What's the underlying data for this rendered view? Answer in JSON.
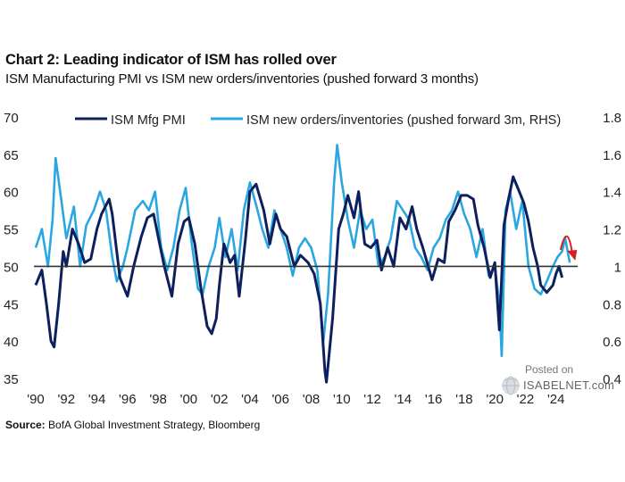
{
  "title": "Chart 2: Leading indicator of ISM has rolled over",
  "subtitle": "ISM Manufacturing PMI vs ISM new orders/inventories (pushed forward 3 months)",
  "source_label": "Source:",
  "source_text": " BofA Global Investment Strategy, Bloomberg",
  "watermark": {
    "posted": "Posted on",
    "site": "ISABELNET.com"
  },
  "colors": {
    "pmi": "#0d1f5c",
    "ratio": "#2aa7e0",
    "arrow": "#d62020",
    "refline": "#333333"
  },
  "chart_data": {
    "type": "line",
    "legend_position": "top",
    "grid": false,
    "x_range": [
      1990,
      2025.3
    ],
    "x_ticks": [
      "'90",
      "'92",
      "'94",
      "'96",
      "'98",
      "'00",
      "'02",
      "'04",
      "'06",
      "'08",
      "'10",
      "'12",
      "'14",
      "'16",
      "'18",
      "'20",
      "'22",
      "'24"
    ],
    "x_tick_values": [
      1990,
      1992,
      1994,
      1996,
      1998,
      2000,
      2002,
      2004,
      2006,
      2008,
      2010,
      2012,
      2014,
      2016,
      2018,
      2020,
      2022,
      2024
    ],
    "y_left": {
      "range": [
        35,
        70
      ],
      "ticks": [
        "35",
        "40",
        "45",
        "50",
        "55",
        "60",
        "65",
        "70"
      ],
      "tick_values": [
        35,
        40,
        45,
        50,
        55,
        60,
        65,
        70
      ]
    },
    "y_right": {
      "range": [
        0.4,
        1.8
      ],
      "ticks": [
        "0.4",
        "0.6",
        "0.8",
        "1",
        "1.2",
        "1.4",
        "1.6",
        "1.8"
      ],
      "tick_values": [
        0.4,
        0.6,
        0.8,
        1.0,
        1.2,
        1.4,
        1.6,
        1.8
      ]
    },
    "reference_line": {
      "axis": "left",
      "value": 50
    },
    "annotation": {
      "type": "curved-arrow",
      "x_range": [
        2024.3,
        2025.2
      ],
      "y_left_peak": 54.5
    },
    "series": [
      {
        "name": "ISM Mfg PMI",
        "axis": "left",
        "points": [
          [
            1990.0,
            47.5
          ],
          [
            1990.4,
            49.5
          ],
          [
            1990.7,
            45.0
          ],
          [
            1991.0,
            40.0
          ],
          [
            1991.2,
            39.2
          ],
          [
            1991.5,
            45.0
          ],
          [
            1991.8,
            52.0
          ],
          [
            1992.0,
            50.0
          ],
          [
            1992.4,
            55.0
          ],
          [
            1992.8,
            53.0
          ],
          [
            1993.2,
            50.5
          ],
          [
            1993.6,
            51.0
          ],
          [
            1994.0,
            55.0
          ],
          [
            1994.3,
            57.0
          ],
          [
            1994.8,
            59.0
          ],
          [
            1995.0,
            57.0
          ],
          [
            1995.5,
            48.5
          ],
          [
            1996.0,
            46.0
          ],
          [
            1996.4,
            50.0
          ],
          [
            1996.9,
            54.0
          ],
          [
            1997.3,
            56.5
          ],
          [
            1997.7,
            57.0
          ],
          [
            1998.0,
            54.0
          ],
          [
            1998.4,
            50.0
          ],
          [
            1998.9,
            46.0
          ],
          [
            1999.3,
            53.0
          ],
          [
            1999.7,
            56.0
          ],
          [
            2000.0,
            56.5
          ],
          [
            2000.4,
            53.0
          ],
          [
            2000.8,
            47.0
          ],
          [
            2001.2,
            42.0
          ],
          [
            2001.5,
            41.0
          ],
          [
            2001.8,
            43.0
          ],
          [
            2002.0,
            47.5
          ],
          [
            2002.3,
            53.0
          ],
          [
            2002.7,
            50.5
          ],
          [
            2003.0,
            51.5
          ],
          [
            2003.3,
            46.0
          ],
          [
            2003.7,
            53.5
          ],
          [
            2004.0,
            60.0
          ],
          [
            2004.4,
            61.0
          ],
          [
            2004.9,
            57.5
          ],
          [
            2005.3,
            53.0
          ],
          [
            2005.7,
            57.0
          ],
          [
            2006.0,
            55.0
          ],
          [
            2006.4,
            54.0
          ],
          [
            2006.9,
            50.0
          ],
          [
            2007.3,
            51.5
          ],
          [
            2007.8,
            50.5
          ],
          [
            2008.2,
            49.0
          ],
          [
            2008.6,
            45.0
          ],
          [
            2008.9,
            36.0
          ],
          [
            2009.0,
            34.5
          ],
          [
            2009.4,
            43.0
          ],
          [
            2009.8,
            55.0
          ],
          [
            2010.1,
            57.0
          ],
          [
            2010.4,
            59.5
          ],
          [
            2010.8,
            56.5
          ],
          [
            2011.1,
            60.0
          ],
          [
            2011.5,
            53.0
          ],
          [
            2011.9,
            52.5
          ],
          [
            2012.3,
            53.5
          ],
          [
            2012.6,
            49.5
          ],
          [
            2013.0,
            52.5
          ],
          [
            2013.4,
            50.0
          ],
          [
            2013.8,
            56.5
          ],
          [
            2014.2,
            55.0
          ],
          [
            2014.6,
            58.0
          ],
          [
            2014.9,
            55.0
          ],
          [
            2015.3,
            52.5
          ],
          [
            2015.9,
            48.2
          ],
          [
            2016.3,
            51.0
          ],
          [
            2016.7,
            50.5
          ],
          [
            2017.0,
            56.0
          ],
          [
            2017.4,
            57.5
          ],
          [
            2017.8,
            59.5
          ],
          [
            2018.2,
            59.5
          ],
          [
            2018.6,
            59.0
          ],
          [
            2018.9,
            55.5
          ],
          [
            2019.3,
            52.5
          ],
          [
            2019.7,
            48.5
          ],
          [
            2020.0,
            50.5
          ],
          [
            2020.3,
            41.5
          ],
          [
            2020.6,
            55.5
          ],
          [
            2020.9,
            59.0
          ],
          [
            2021.2,
            62.0
          ],
          [
            2021.5,
            60.5
          ],
          [
            2021.9,
            58.5
          ],
          [
            2022.2,
            56.0
          ],
          [
            2022.5,
            52.5
          ],
          [
            2022.8,
            50.0
          ],
          [
            2023.0,
            47.5
          ],
          [
            2023.4,
            46.5
          ],
          [
            2023.8,
            47.5
          ],
          [
            2024.0,
            49.0
          ],
          [
            2024.2,
            50.0
          ],
          [
            2024.4,
            48.5
          ]
        ]
      },
      {
        "name": "ISM new orders/inventories (pushed forward 3m, RHS)",
        "axis": "right",
        "points": [
          [
            1990.0,
            1.1
          ],
          [
            1990.4,
            1.2
          ],
          [
            1990.8,
            1.0
          ],
          [
            1991.1,
            1.25
          ],
          [
            1991.3,
            1.58
          ],
          [
            1991.6,
            1.4
          ],
          [
            1992.0,
            1.15
          ],
          [
            1992.5,
            1.32
          ],
          [
            1992.9,
            1.0
          ],
          [
            1993.3,
            1.22
          ],
          [
            1993.8,
            1.3
          ],
          [
            1994.2,
            1.4
          ],
          [
            1994.6,
            1.3
          ],
          [
            1995.0,
            1.05
          ],
          [
            1995.3,
            0.92
          ],
          [
            1995.7,
            1.0
          ],
          [
            1996.0,
            1.1
          ],
          [
            1996.5,
            1.3
          ],
          [
            1997.0,
            1.35
          ],
          [
            1997.4,
            1.3
          ],
          [
            1997.8,
            1.4
          ],
          [
            1998.2,
            1.1
          ],
          [
            1998.6,
            0.98
          ],
          [
            1999.0,
            1.1
          ],
          [
            1999.4,
            1.3
          ],
          [
            1999.8,
            1.42
          ],
          [
            2000.2,
            1.12
          ],
          [
            2000.6,
            0.88
          ],
          [
            2000.9,
            0.85
          ],
          [
            2001.3,
            1.0
          ],
          [
            2001.7,
            1.1
          ],
          [
            2002.0,
            1.26
          ],
          [
            2002.4,
            1.05
          ],
          [
            2002.8,
            1.2
          ],
          [
            2003.2,
            0.98
          ],
          [
            2003.6,
            1.3
          ],
          [
            2004.0,
            1.45
          ],
          [
            2004.4,
            1.33
          ],
          [
            2004.8,
            1.2
          ],
          [
            2005.2,
            1.1
          ],
          [
            2005.6,
            1.3
          ],
          [
            2006.0,
            1.2
          ],
          [
            2006.4,
            1.1
          ],
          [
            2006.8,
            0.95
          ],
          [
            2007.2,
            1.1
          ],
          [
            2007.6,
            1.15
          ],
          [
            2008.0,
            1.1
          ],
          [
            2008.4,
            0.98
          ],
          [
            2008.8,
            0.6
          ],
          [
            2009.1,
            0.85
          ],
          [
            2009.5,
            1.45
          ],
          [
            2009.7,
            1.65
          ],
          [
            2010.0,
            1.45
          ],
          [
            2010.4,
            1.25
          ],
          [
            2010.8,
            1.1
          ],
          [
            2011.2,
            1.3
          ],
          [
            2011.6,
            1.2
          ],
          [
            2012.0,
            1.25
          ],
          [
            2012.4,
            1.0
          ],
          [
            2012.8,
            1.05
          ],
          [
            2013.2,
            1.15
          ],
          [
            2013.6,
            1.35
          ],
          [
            2014.0,
            1.3
          ],
          [
            2014.4,
            1.25
          ],
          [
            2014.8,
            1.1
          ],
          [
            2015.2,
            1.05
          ],
          [
            2015.6,
            0.98
          ],
          [
            2016.0,
            1.1
          ],
          [
            2016.4,
            1.15
          ],
          [
            2016.8,
            1.25
          ],
          [
            2017.2,
            1.3
          ],
          [
            2017.6,
            1.4
          ],
          [
            2018.0,
            1.28
          ],
          [
            2018.4,
            1.2
          ],
          [
            2018.8,
            1.05
          ],
          [
            2019.2,
            1.2
          ],
          [
            2019.6,
            0.95
          ],
          [
            2020.0,
            1.0
          ],
          [
            2020.3,
            0.8
          ],
          [
            2020.45,
            0.52
          ],
          [
            2020.7,
            1.3
          ],
          [
            2021.0,
            1.4
          ],
          [
            2021.4,
            1.2
          ],
          [
            2021.8,
            1.35
          ],
          [
            2022.2,
            1.0
          ],
          [
            2022.6,
            0.88
          ],
          [
            2023.0,
            0.85
          ],
          [
            2023.4,
            0.92
          ],
          [
            2023.8,
            1.0
          ],
          [
            2024.1,
            1.05
          ],
          [
            2024.4,
            1.08
          ],
          [
            2024.6,
            1.15
          ],
          [
            2024.9,
            1.02
          ]
        ]
      }
    ]
  }
}
